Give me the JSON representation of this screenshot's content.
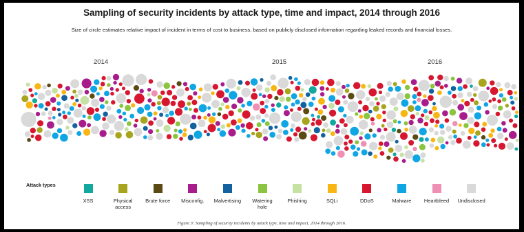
{
  "chart_data": {
    "type": "scatter",
    "title": "Sampling of security incidents by attack type, time and impact, 2014 through 2016",
    "subtitle": "Size of circle estimates relative impact of incident in terms of cost to business, based on publicly disclosed information regarding leaked records and financial losses.",
    "x_ticks": [
      "2014",
      "2015",
      "2016"
    ],
    "legend_title": "Attack types",
    "legend_placement": "bottom",
    "categories": [
      {
        "name": "XSS",
        "color": "#13a89e"
      },
      {
        "name": "Physical\naccess",
        "color": "#a7a51d"
      },
      {
        "name": "Brute force",
        "color": "#5b4a14"
      },
      {
        "name": "Misconfig.",
        "color": "#a81c8c"
      },
      {
        "name": "Malvertising",
        "color": "#11629e"
      },
      {
        "name": "Watering\nhole",
        "color": "#8bc53f"
      },
      {
        "name": "Phishing",
        "color": "#c6e1a4"
      },
      {
        "name": "SQLi",
        "color": "#f7b614"
      },
      {
        "name": "DDoS",
        "color": "#d7172f"
      },
      {
        "name": "Malware",
        "color": "#10a6e4"
      },
      {
        "name": "Heartbleed",
        "color": "#ef8fb4"
      },
      {
        "name": "Undisclosed",
        "color": "#d9d9d9"
      }
    ],
    "size_meaning": "relative impact of incident",
    "grid": false
  },
  "caption": "Figure 3: Sampling of security incidents by attack type, time and impact, 2014 through 2016."
}
